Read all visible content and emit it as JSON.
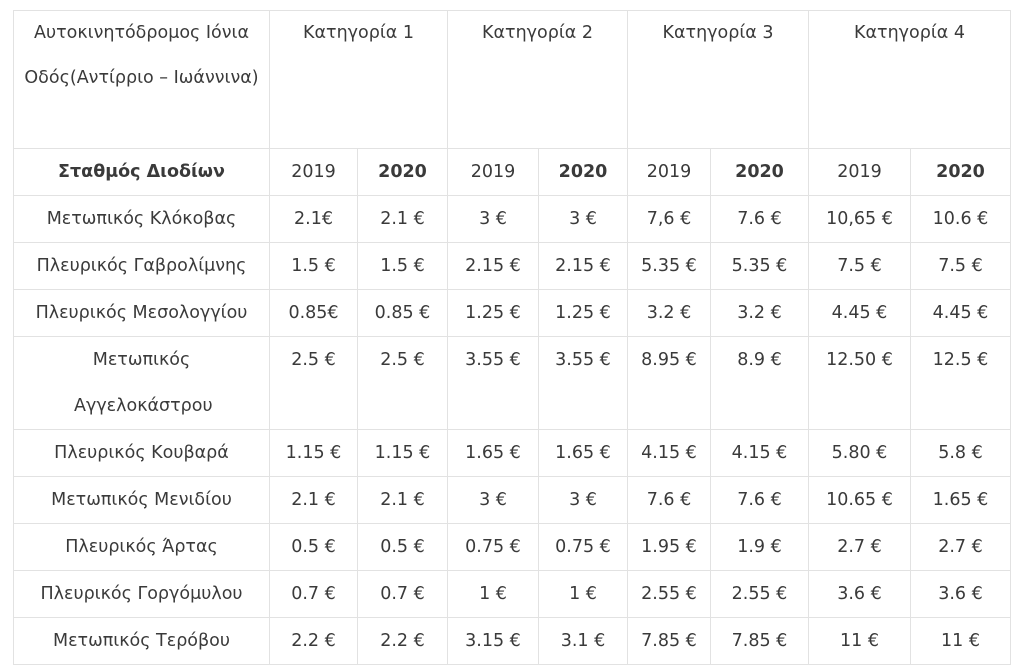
{
  "header": {
    "corner": "Αυτοκινητόδρομος Ιόνια Οδός(Αντίρριο – Ιωάννινα)",
    "categories": [
      "Κατηγορία  1",
      "Κατηγορία 2",
      "Κατηγορία 3",
      "Κατηγορία 4"
    ]
  },
  "subheader": {
    "station_label": "Σταθμός Διοδίων",
    "years": [
      "2019",
      "2020",
      "2019",
      "2020",
      "2019",
      "2020",
      "2019",
      "2020"
    ]
  },
  "rows": [
    {
      "station": "Μετωπικός Κλόκοβας",
      "values": [
        "2.1€",
        "2.1 €",
        "3 €",
        "3 €",
        "7,6 €",
        "7.6 €",
        "10,65 €",
        "10.6 €"
      ]
    },
    {
      "station": "Πλευρικός Γαβρολίμνης",
      "values": [
        "1.5 €",
        "1.5 €",
        "2.15 €",
        "2.15 €",
        "5.35 €",
        "5.35 €",
        "7.5  €",
        "7.5 €"
      ]
    },
    {
      "station": "Πλευρικός Μεσολογγίου",
      "values": [
        "0.85€",
        "0.85 €",
        "1.25 €",
        "1.25 €",
        "3.2 €",
        "3.2 €",
        "4.45 €",
        "4.45 €"
      ]
    },
    {
      "station": "Μετωπικός Αγγελοκάστρου",
      "values": [
        "2.5 €",
        "2.5 €",
        "3.55 €",
        "3.55 €",
        "8.95 €",
        "8.9 €",
        "12.50 €",
        "12.5 €"
      ]
    },
    {
      "station": "Πλευρικός Κουβαρά",
      "values": [
        "1.15 €",
        "1.15 €",
        "1.65 €",
        "1.65 €",
        "4.15 €",
        "4.15 €",
        "5.80 €",
        "5.8 €"
      ]
    },
    {
      "station": "Μετωπικός Μενιδίου",
      "values": [
        "2.1 €",
        "2.1 €",
        "3 €",
        "3 €",
        "7.6 €",
        "7.6 €",
        "10.65 €",
        "1.65 €"
      ]
    },
    {
      "station": "Πλευρικός Άρτας",
      "values": [
        "0.5 €",
        "0.5 €",
        "0.75 €",
        "0.75 €",
        "1.95 €",
        "1.9 €",
        "2.7 €",
        "2.7 €"
      ]
    },
    {
      "station": "Πλευρικός Γοργόμυλου",
      "values": [
        "0.7 €",
        "0.7 €",
        "1 €",
        "1 €",
        "2.55 €",
        "2.55 €",
        "3.6 €",
        "3.6 €"
      ]
    },
    {
      "station": "Μετωπικός Τερόβου",
      "values": [
        "2.2 €",
        "2.2 €",
        "3.15 €",
        "3.1 €",
        "7.85 €",
        "7.85 €",
        "11 €",
        "11 €"
      ]
    }
  ]
}
